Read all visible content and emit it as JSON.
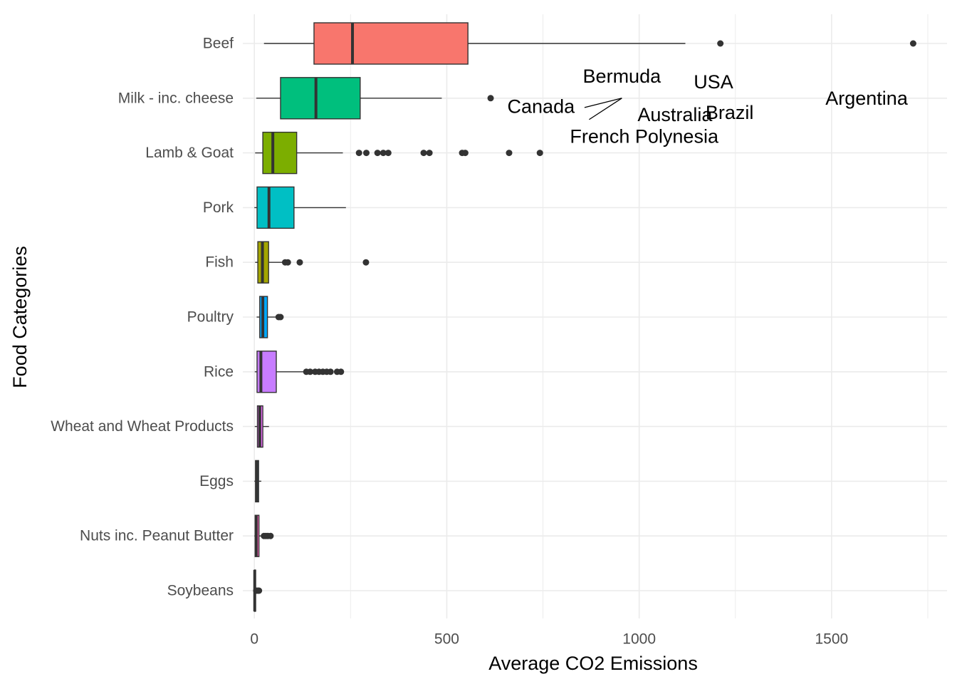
{
  "chart_data": {
    "type": "boxplot",
    "orientation": "horizontal",
    "xlabel": "Average CO2 Emissions",
    "ylabel": "Food Categories",
    "xlim": [
      -30,
      1800
    ],
    "x_ticks": [
      0,
      500,
      1000,
      1500
    ],
    "x_tick_labels": [
      "0",
      "500",
      "1000",
      "1500"
    ],
    "grid": true,
    "legend": "none",
    "categories": [
      "Beef",
      "Milk - inc. cheese",
      "Lamb & Goat",
      "Pork",
      "Fish",
      "Poultry",
      "Rice",
      "Wheat and Wheat Products",
      "Eggs",
      "Nuts inc. Peanut Butter",
      "Soybeans"
    ],
    "boxes": [
      {
        "category": "Beef",
        "color": "#F8766D",
        "whisker_low": 25,
        "q1": 155,
        "median": 255,
        "q3": 555,
        "whisker_high": 1120,
        "outliers": [
          1211,
          1712
        ]
      },
      {
        "category": "Milk - inc. cheese",
        "color": "#00BF7D",
        "whisker_low": 5,
        "q1": 68,
        "median": 160,
        "q3": 275,
        "whisker_high": 487,
        "outliers": [
          614
        ]
      },
      {
        "category": "Lamb & Goat",
        "color": "#7CAE00",
        "whisker_low": 2,
        "q1": 22,
        "median": 48,
        "q3": 110,
        "whisker_high": 230,
        "outliers": [
          272,
          291,
          320,
          335,
          348,
          440,
          455,
          540,
          548,
          662,
          742
        ]
      },
      {
        "category": "Pork",
        "color": "#00BFC4",
        "whisker_low": 0,
        "q1": 7,
        "median": 38,
        "q3": 103,
        "whisker_high": 238,
        "outliers": []
      },
      {
        "category": "Fish",
        "color": "#A3A500",
        "whisker_low": 2,
        "q1": 9,
        "median": 21,
        "q3": 37,
        "whisker_high": 75,
        "outliers": [
          80,
          87,
          118,
          290
        ]
      },
      {
        "category": "Poultry",
        "color": "#00A9FF",
        "whisker_low": 6,
        "q1": 14,
        "median": 22,
        "q3": 34,
        "whisker_high": 55,
        "outliers": [
          63,
          68
        ]
      },
      {
        "category": "Rice",
        "color": "#C77CFF",
        "whisker_low": 1,
        "q1": 7,
        "median": 17,
        "q3": 57,
        "whisker_high": 128,
        "outliers": [
          135,
          145,
          158,
          168,
          178,
          188,
          198,
          215,
          225
        ]
      },
      {
        "category": "Wheat and Wheat Products",
        "color": "#E76BF3",
        "whisker_low": 1,
        "q1": 8,
        "median": 14,
        "q3": 22,
        "whisker_high": 38,
        "outliers": []
      },
      {
        "category": "Eggs",
        "color": "#00B0F6",
        "whisker_low": 0,
        "q1": 3,
        "median": 6,
        "q3": 11,
        "whisker_high": 18,
        "outliers": []
      },
      {
        "category": "Nuts inc. Peanut Butter",
        "color": "#FF62BC",
        "whisker_low": 0,
        "q1": 2,
        "median": 5,
        "q3": 12,
        "whisker_high": 18,
        "outliers": [
          25,
          30,
          35,
          42
        ]
      },
      {
        "category": "Soybeans",
        "color": "#D89000",
        "whisker_low": 0,
        "q1": 0,
        "median": 1,
        "q3": 3,
        "whisker_high": 6,
        "outliers": [
          5,
          9,
          12
        ]
      }
    ],
    "annotations": [
      {
        "text": "Bermuda",
        "x": 955,
        "y": 10.4
      },
      {
        "text": "USA",
        "x": 1193,
        "y": 10.3
      },
      {
        "text": "Canada",
        "x": 745,
        "y": 9.85
      },
      {
        "text": "Argentina",
        "x": 1591,
        "y": 10.0
      },
      {
        "text": "Australia",
        "x": 1093,
        "y": 9.7
      },
      {
        "text": "Brazil",
        "x": 1235,
        "y": 9.74
      },
      {
        "text": "French Polynesia",
        "x": 1013,
        "y": 9.3
      }
    ],
    "leader_lines": [
      {
        "from": [
          858,
          9.83
        ],
        "to": [
          955,
          10.0
        ]
      },
      {
        "from": [
          870,
          9.61
        ],
        "to": [
          955,
          10.0
        ]
      }
    ]
  }
}
